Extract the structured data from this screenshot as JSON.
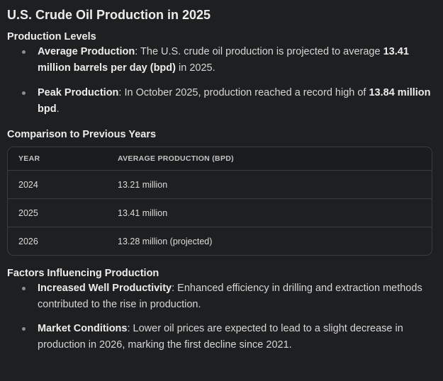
{
  "title": "U.S. Crude Oil Production in 2025",
  "levels": {
    "heading": "Production Levels",
    "items": [
      {
        "label": "Average Production",
        "pre": ": The U.S. crude oil production is projected to average ",
        "strong": "13.41 million barrels per day (bpd)",
        "post": " in 2025."
      },
      {
        "label": "Peak Production",
        "pre": ": In October 2025, production reached a record high of ",
        "strong": "13.84 million bpd",
        "post": "."
      }
    ]
  },
  "comparison": {
    "heading": "Comparison to Previous Years",
    "columns": [
      "YEAR",
      "AVERAGE PRODUCTION (BPD)"
    ],
    "rows": [
      [
        "2024",
        "13.21 million"
      ],
      [
        "2025",
        "13.41 million"
      ],
      [
        "2026",
        "13.28 million (projected)"
      ]
    ]
  },
  "factors": {
    "heading": "Factors Influencing Production",
    "items": [
      {
        "label": "Increased Well Productivity",
        "text": ": Enhanced efficiency in drilling and extraction methods contributed to the rise in production."
      },
      {
        "label": "Market Conditions",
        "text": ": Lower oil prices are expected to lead to a slight decrease in production in 2026, marking the first decline since 2021."
      }
    ]
  }
}
